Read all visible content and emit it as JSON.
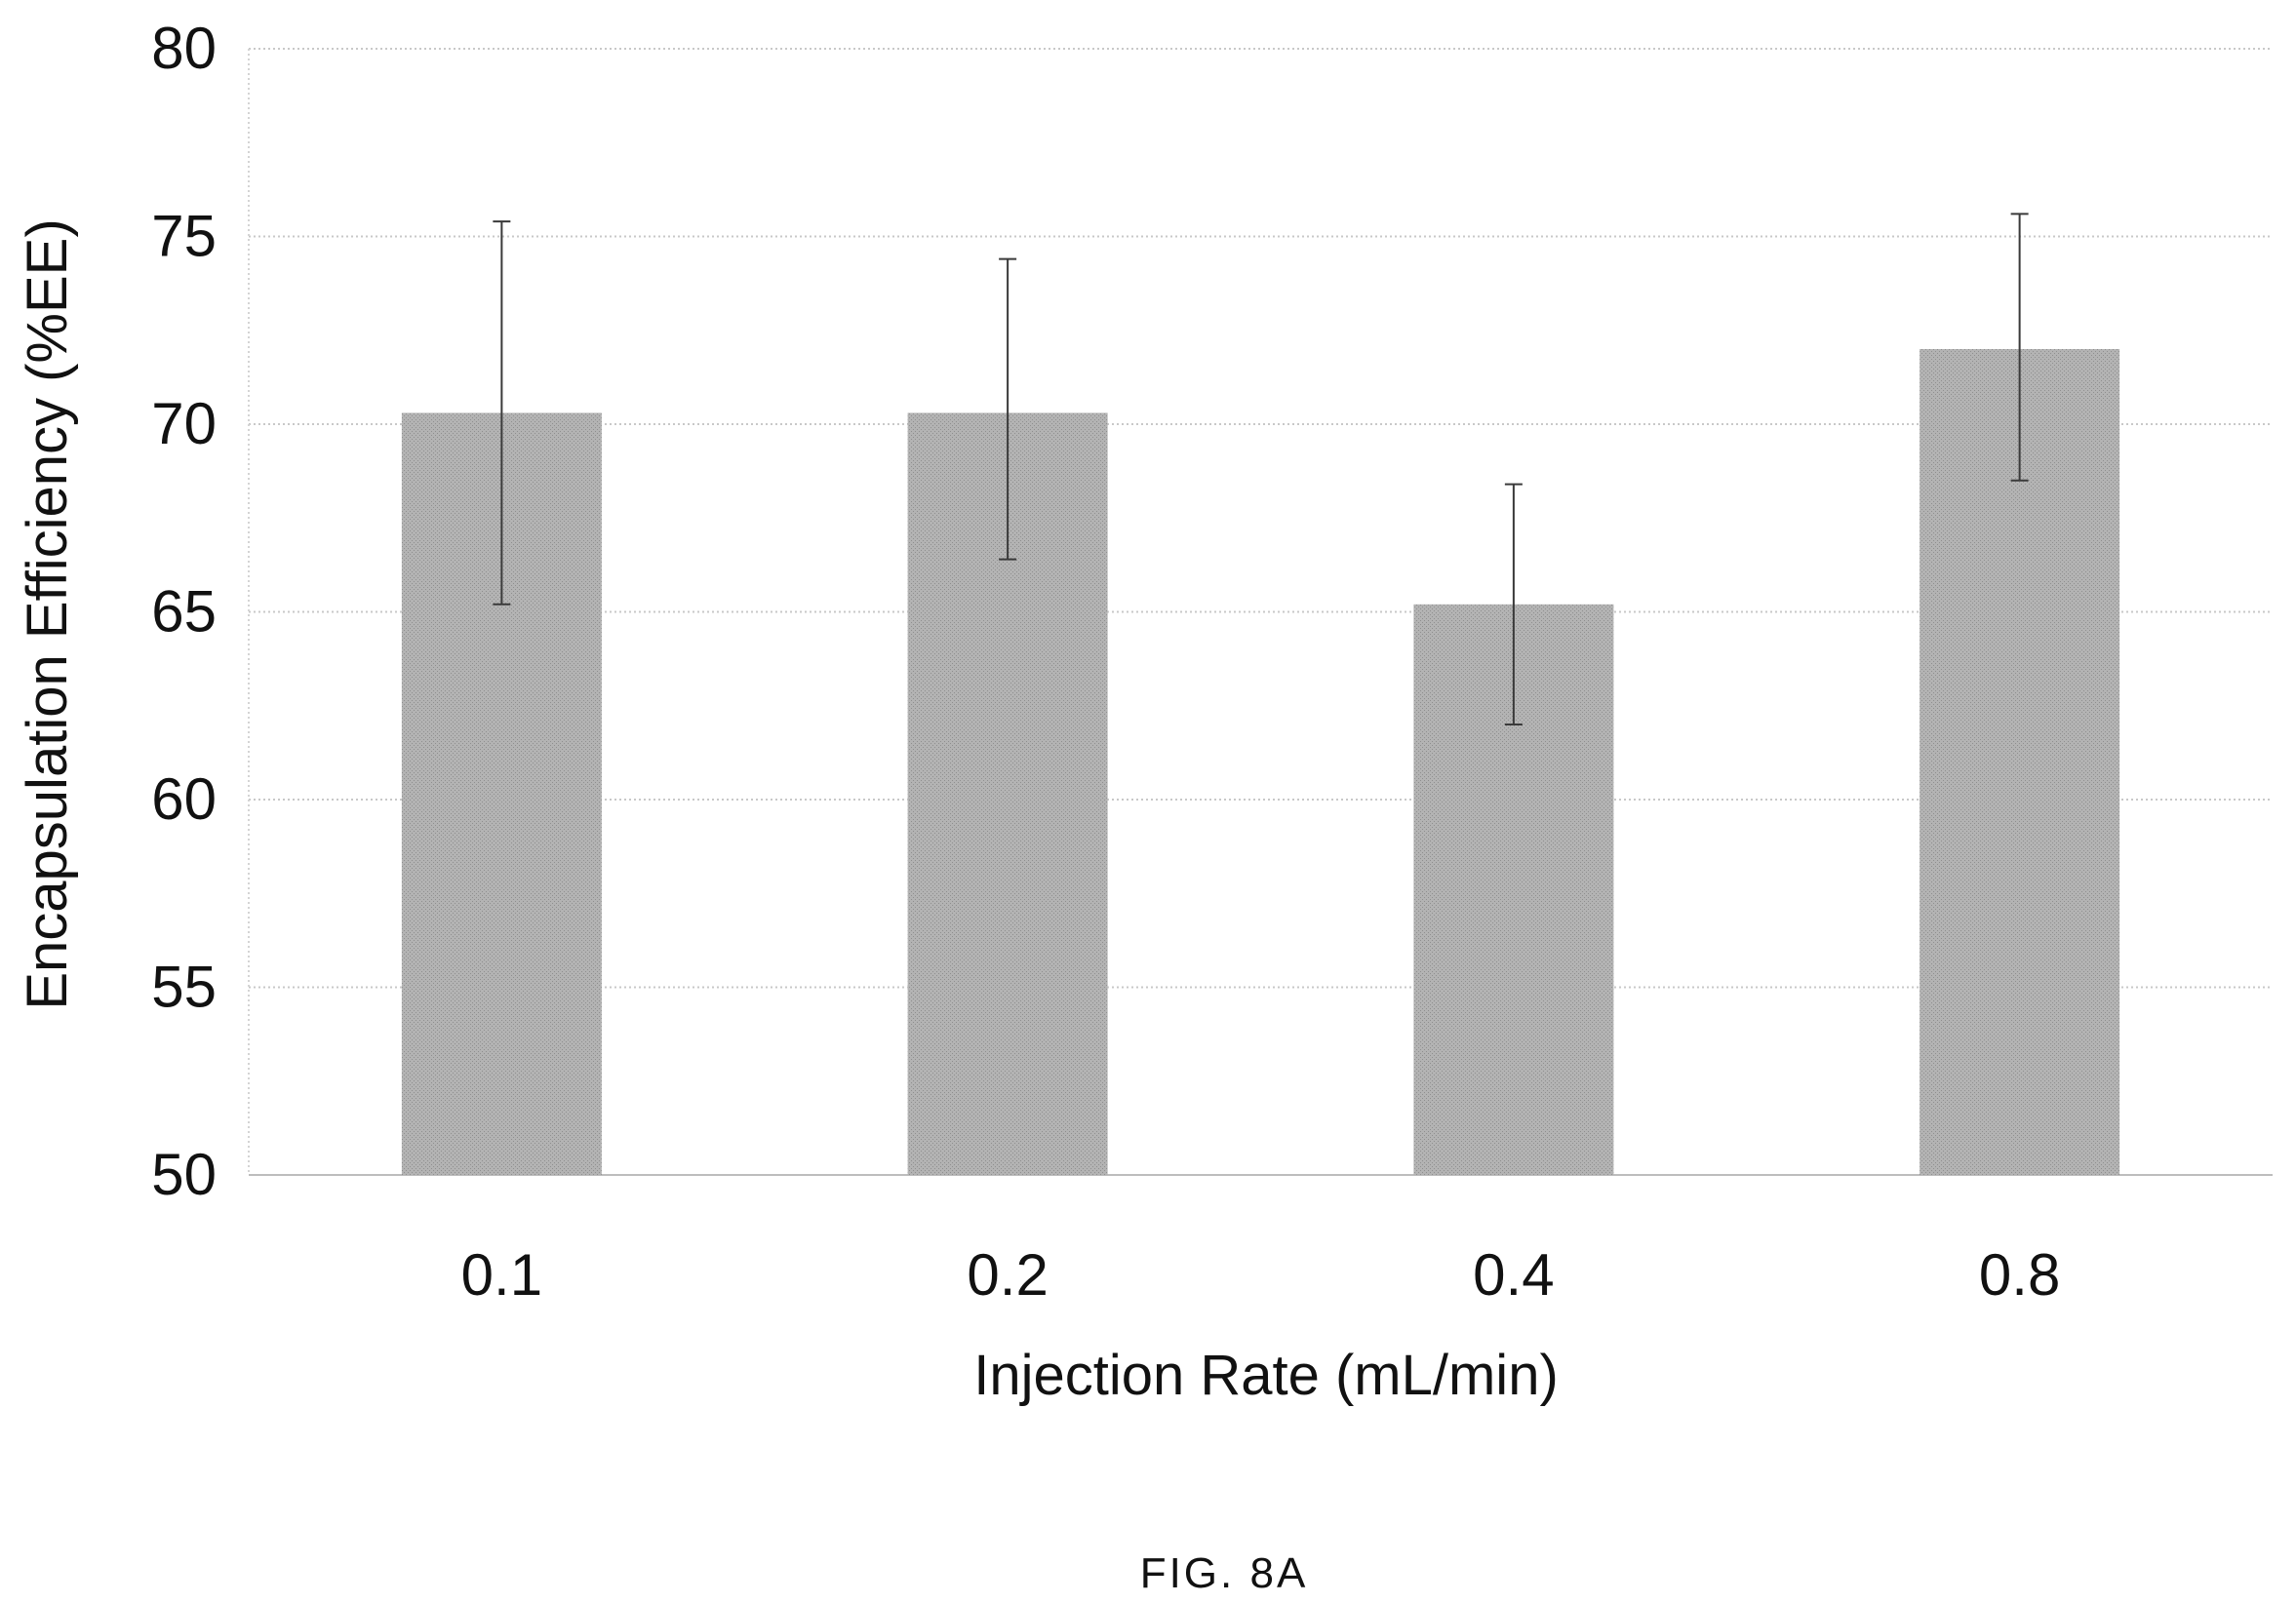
{
  "chart_data": {
    "type": "bar",
    "title": "",
    "xlabel": "Injection Rate (mL/min)",
    "ylabel": "Encapsulation Efficiency (%EE)",
    "categories": [
      "0.1",
      "0.2",
      "0.4",
      "0.8"
    ],
    "values": [
      70.3,
      70.3,
      65.2,
      72.0
    ],
    "error_bars": {
      "upper": [
        75.4,
        74.4,
        68.4,
        75.6
      ],
      "lower": [
        65.2,
        66.4,
        62.0,
        68.5
      ]
    },
    "ylim": [
      50,
      80
    ],
    "yticks": [
      50,
      55,
      60,
      65,
      70,
      75,
      80
    ],
    "grid": "horizontal dotted",
    "bar_color": "#a9a9a9",
    "legend": "none"
  },
  "figure": {
    "caption": "FIG. 8A"
  }
}
